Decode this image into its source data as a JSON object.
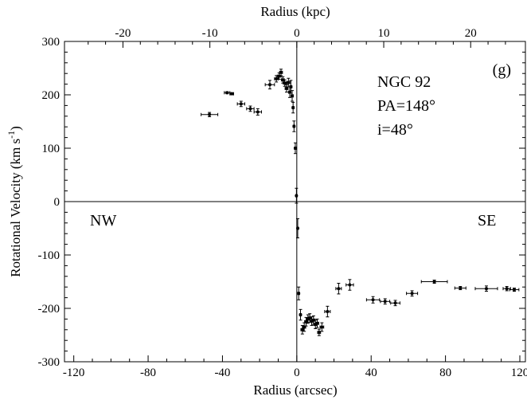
{
  "chart_data": {
    "type": "scatter",
    "panel_label": "(g)",
    "annotations": {
      "galaxy": "NGC 92",
      "position_angle": "PA=148°",
      "inclination": "i=48°",
      "left_side": "NW",
      "right_side": "SE"
    },
    "xlabel": "Radius (arcsec)",
    "x2label": "Radius (kpc)",
    "ylabel_main": "Rotational Velocity (km s",
    "ylabel_exp": "-1",
    "ylabel_close": ")",
    "xlim": [
      -125,
      123
    ],
    "ylim": [
      -300,
      300
    ],
    "x2_kpc_per_arcsec": 0.2138,
    "xticks": [
      -120,
      -80,
      -40,
      0,
      40,
      80,
      120
    ],
    "x2ticks": [
      -20,
      -10,
      0,
      10,
      20
    ],
    "yticks": [
      -300,
      -200,
      -100,
      0,
      100,
      200,
      300
    ],
    "grid": false,
    "zero_lines": true,
    "series": [
      {
        "points": [
          {
            "x": -47.0,
            "y": 163,
            "xerr": 4.5,
            "yerr": 4
          },
          {
            "x": -37.5,
            "y": 204,
            "xerr": 1.5,
            "yerr": 2
          },
          {
            "x": -35.0,
            "y": 202,
            "xerr": 1.0,
            "yerr": 2
          },
          {
            "x": -30.0,
            "y": 183,
            "xerr": 2.0,
            "yerr": 5
          },
          {
            "x": -25.0,
            "y": 174,
            "xerr": 2.0,
            "yerr": 5
          },
          {
            "x": -21.0,
            "y": 168,
            "xerr": 2.0,
            "yerr": 6
          },
          {
            "x": -14.5,
            "y": 219,
            "xerr": 2.5,
            "yerr": 8
          },
          {
            "x": -11.0,
            "y": 230,
            "xerr": 1.0,
            "yerr": 6
          },
          {
            "x": -9.5,
            "y": 235,
            "xerr": 1.0,
            "yerr": 6
          },
          {
            "x": -8.5,
            "y": 242,
            "xerr": 0.8,
            "yerr": 6
          },
          {
            "x": -7.5,
            "y": 228,
            "xerr": 0.8,
            "yerr": 6
          },
          {
            "x": -6.5,
            "y": 222,
            "xerr": 0.8,
            "yerr": 6
          },
          {
            "x": -5.5,
            "y": 212,
            "xerr": 0.8,
            "yerr": 7
          },
          {
            "x": -4.5,
            "y": 223,
            "xerr": 0.8,
            "yerr": 8
          },
          {
            "x": -3.8,
            "y": 205,
            "xerr": 0.6,
            "yerr": 10
          },
          {
            "x": -3.2,
            "y": 215,
            "xerr": 0.6,
            "yerr": 12
          },
          {
            "x": -2.5,
            "y": 198,
            "xerr": 0.6,
            "yerr": 10
          },
          {
            "x": -2.0,
            "y": 176,
            "xerr": 0.5,
            "yerr": 10
          },
          {
            "x": -1.5,
            "y": 141,
            "xerr": 0.5,
            "yerr": 10
          },
          {
            "x": -0.8,
            "y": 100,
            "xerr": 0.5,
            "yerr": 10
          },
          {
            "x": -0.2,
            "y": 11,
            "xerr": 0.4,
            "yerr": 14
          },
          {
            "x": 0.5,
            "y": -50,
            "xerr": 0.4,
            "yerr": 18
          },
          {
            "x": 1.0,
            "y": -172,
            "xerr": 0.5,
            "yerr": 12
          },
          {
            "x": 2.0,
            "y": -212,
            "xerr": 0.5,
            "yerr": 10
          },
          {
            "x": 3.0,
            "y": -240,
            "xerr": 0.8,
            "yerr": 8
          },
          {
            "x": 4.0,
            "y": -235,
            "xerr": 0.8,
            "yerr": 8
          },
          {
            "x": 5.0,
            "y": -225,
            "xerr": 0.8,
            "yerr": 8
          },
          {
            "x": 6.0,
            "y": -220,
            "xerr": 0.8,
            "yerr": 8
          },
          {
            "x": 7.0,
            "y": -218,
            "xerr": 0.8,
            "yerr": 8
          },
          {
            "x": 8.0,
            "y": -224,
            "xerr": 0.8,
            "yerr": 8
          },
          {
            "x": 9.0,
            "y": -222,
            "xerr": 0.8,
            "yerr": 8
          },
          {
            "x": 10.0,
            "y": -230,
            "xerr": 0.8,
            "yerr": 8
          },
          {
            "x": 11.0,
            "y": -228,
            "xerr": 0.8,
            "yerr": 8
          },
          {
            "x": 12.0,
            "y": -245,
            "xerr": 0.8,
            "yerr": 6
          },
          {
            "x": 13.5,
            "y": -235,
            "xerr": 1.0,
            "yerr": 8
          },
          {
            "x": 16.5,
            "y": -206,
            "xerr": 1.5,
            "yerr": 10
          },
          {
            "x": 22.5,
            "y": -163,
            "xerr": 1.5,
            "yerr": 10
          },
          {
            "x": 28.5,
            "y": -156,
            "xerr": 2.0,
            "yerr": 10
          },
          {
            "x": 41.0,
            "y": -184,
            "xerr": 3.5,
            "yerr": 6
          },
          {
            "x": 47.5,
            "y": -187,
            "xerr": 2.5,
            "yerr": 5
          },
          {
            "x": 53.0,
            "y": -190,
            "xerr": 2.5,
            "yerr": 5
          },
          {
            "x": 62.0,
            "y": -172,
            "xerr": 3.0,
            "yerr": 5
          },
          {
            "x": 74.0,
            "y": -150,
            "xerr": 7.0,
            "yerr": 3
          },
          {
            "x": 88.0,
            "y": -162,
            "xerr": 3.0,
            "yerr": 3
          },
          {
            "x": 102.0,
            "y": -163,
            "xerr": 6.0,
            "yerr": 5
          },
          {
            "x": 113.0,
            "y": -163,
            "xerr": 2.0,
            "yerr": 4
          },
          {
            "x": 117.0,
            "y": -165,
            "xerr": 2.5,
            "yerr": 3
          }
        ]
      }
    ]
  }
}
